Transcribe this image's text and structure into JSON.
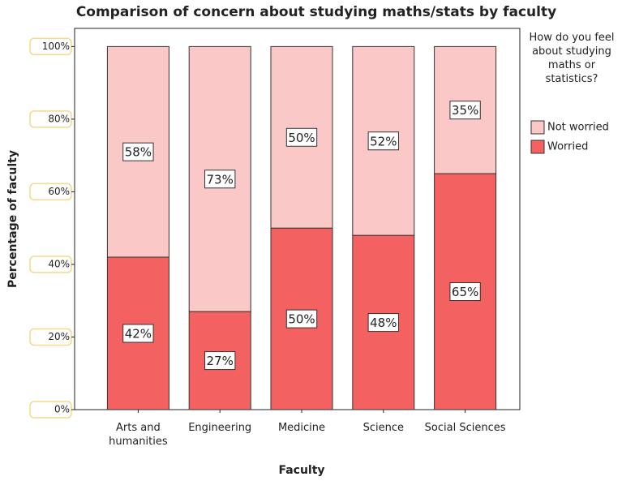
{
  "chart_data": {
    "type": "stacked_bar",
    "title": "Comparison of concern about studying maths/stats by faculty",
    "x_label": "Faculty",
    "y_label": "Percentage of faculty",
    "legend_title": "How do you feel about studying maths or statistics?",
    "categories": [
      "Arts and humanities",
      "Engineering",
      "Medicine",
      "Science",
      "Social Sciences"
    ],
    "series": [
      {
        "name": "Worried",
        "color": "#f46161",
        "values": [
          42,
          27,
          50,
          48,
          65
        ],
        "value_labels": [
          "42%",
          "27%",
          "50%",
          "48%",
          "65%"
        ]
      },
      {
        "name": "Not worried",
        "color": "#fbc8c8",
        "values": [
          58,
          73,
          50,
          52,
          35
        ],
        "value_labels": [
          "58%",
          "73%",
          "50%",
          "52%",
          "35%"
        ]
      }
    ],
    "ylim": [
      0,
      105
    ],
    "yticks": [
      {
        "value": 0,
        "label": "0%"
      },
      {
        "value": 20,
        "label": "20%"
      },
      {
        "value": 40,
        "label": "40%"
      },
      {
        "value": 60,
        "label": "60%"
      },
      {
        "value": 80,
        "label": "80%"
      },
      {
        "value": 100,
        "label": "100%"
      }
    ],
    "legend_position": "right"
  }
}
